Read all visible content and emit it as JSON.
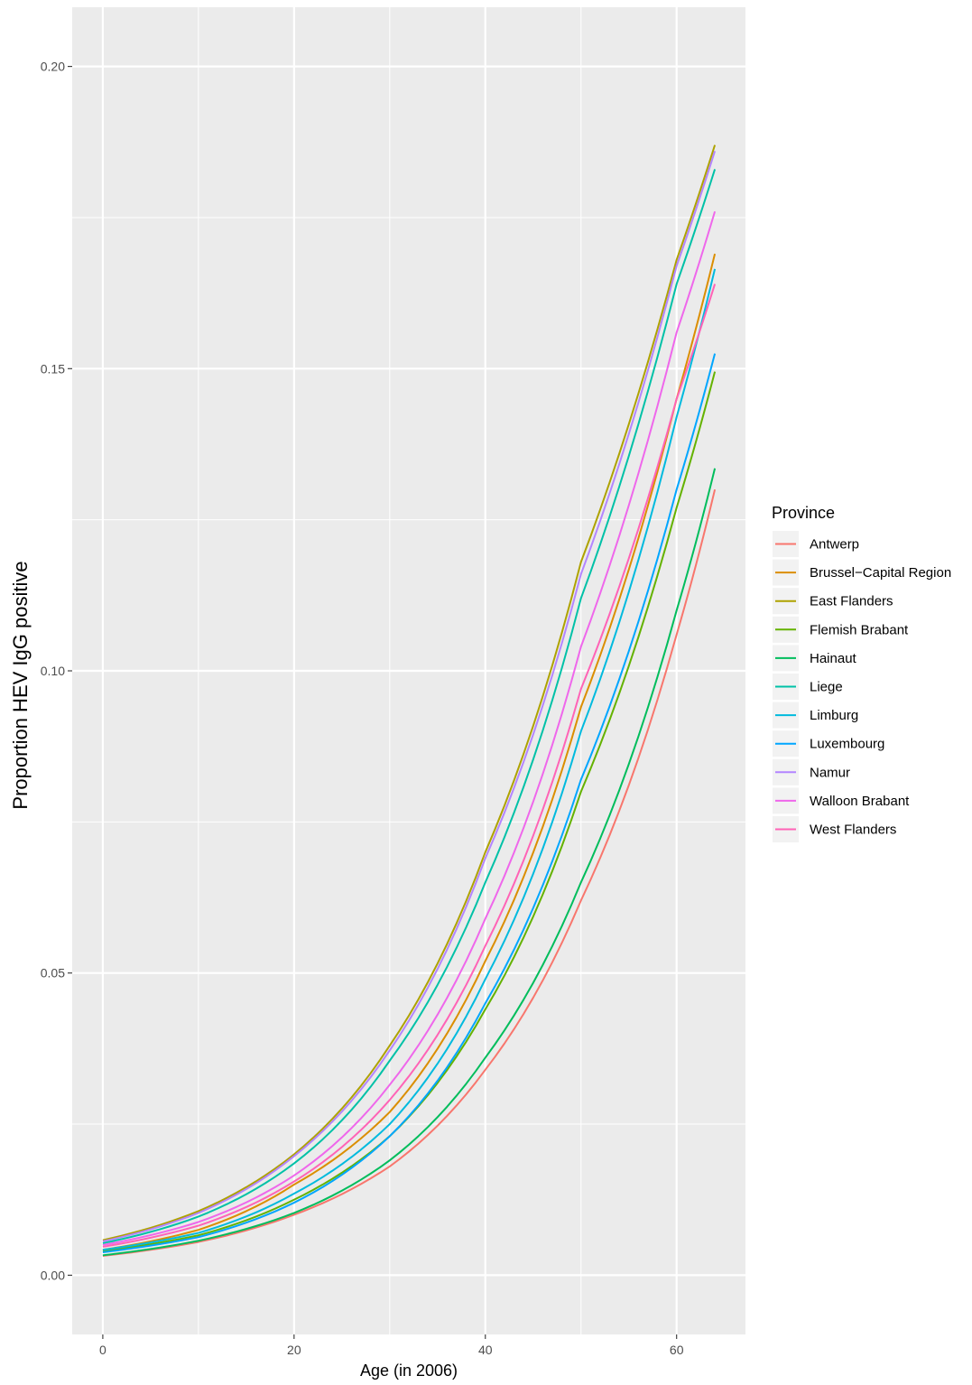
{
  "chart_data": {
    "type": "line",
    "title": "",
    "xlabel": "Age (in 2006)",
    "ylabel": "Proportion HEV IgG positive",
    "xlim": [
      -3.2,
      67.2
    ],
    "ylim": [
      -0.0098,
      0.2098
    ],
    "x_ticks": [
      0,
      20,
      40,
      60
    ],
    "x_tick_labels": [
      "0",
      "20",
      "40",
      "60"
    ],
    "y_ticks": [
      0.0,
      0.05,
      0.1,
      0.15,
      0.2
    ],
    "y_tick_labels": [
      "0.00",
      "0.05",
      "0.10",
      "0.15",
      "0.20"
    ],
    "grid": true,
    "legend_title": "Province",
    "legend_position": "right",
    "x": [
      0,
      10,
      20,
      30,
      40,
      50,
      60,
      64
    ],
    "series": [
      {
        "name": "Antwerp",
        "color": "#F8766D",
        "values": [
          0.0032,
          0.0055,
          0.01,
          0.018,
          0.034,
          0.062,
          0.106,
          0.13
        ]
      },
      {
        "name": "Brussel−Capital Region",
        "color": "#DB8E00",
        "values": [
          0.0042,
          0.0075,
          0.015,
          0.027,
          0.052,
          0.094,
          0.145,
          0.169
        ]
      },
      {
        "name": "East Flanders",
        "color": "#AEA200",
        "values": [
          0.0058,
          0.0106,
          0.02,
          0.038,
          0.07,
          0.118,
          0.168,
          0.187
        ]
      },
      {
        "name": "Flemish Brabant",
        "color": "#64B200",
        "values": [
          0.004,
          0.0066,
          0.0125,
          0.023,
          0.044,
          0.08,
          0.127,
          0.1495
        ]
      },
      {
        "name": "Hainaut",
        "color": "#00BD5C",
        "values": [
          0.0033,
          0.0057,
          0.0103,
          0.019,
          0.036,
          0.065,
          0.11,
          0.1335
        ]
      },
      {
        "name": "Liege",
        "color": "#00C1A7",
        "values": [
          0.0053,
          0.0097,
          0.0185,
          0.0355,
          0.065,
          0.112,
          0.164,
          0.183
        ]
      },
      {
        "name": "Limburg",
        "color": "#00BADE",
        "values": [
          0.0042,
          0.007,
          0.0135,
          0.025,
          0.049,
          0.09,
          0.142,
          0.1665
        ]
      },
      {
        "name": "Luxembourg",
        "color": "#00A6FF",
        "values": [
          0.0038,
          0.0063,
          0.012,
          0.023,
          0.045,
          0.082,
          0.13,
          0.1525
        ]
      },
      {
        "name": "Namur",
        "color": "#B385FF",
        "values": [
          0.0056,
          0.0103,
          0.0197,
          0.0372,
          0.069,
          0.116,
          0.167,
          0.186
        ]
      },
      {
        "name": "Walloon Brabant",
        "color": "#EF67EB",
        "values": [
          0.005,
          0.0088,
          0.0165,
          0.0315,
          0.059,
          0.104,
          0.156,
          0.176
        ]
      },
      {
        "name": "West Flanders",
        "color": "#FF63B6",
        "values": [
          0.0047,
          0.0082,
          0.0155,
          0.029,
          0.0545,
          0.097,
          0.145,
          0.164
        ]
      }
    ]
  }
}
